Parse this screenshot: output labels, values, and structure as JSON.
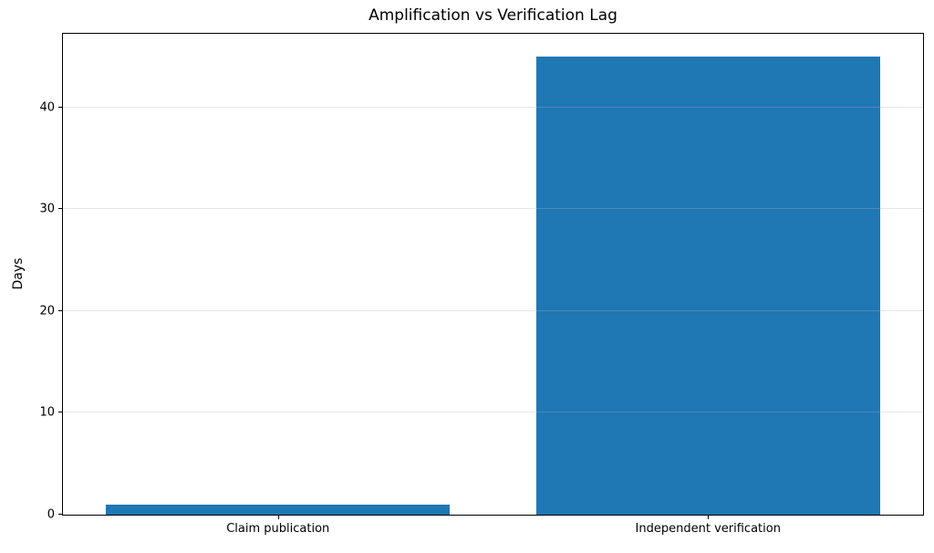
{
  "chart_data": {
    "type": "bar",
    "title": "Amplification vs Verification Lag",
    "categories": [
      "Claim publication",
      "Independent verification"
    ],
    "values": [
      1,
      45
    ],
    "xlabel": "",
    "ylabel": "Days",
    "ylim": [
      0,
      47.25
    ],
    "yticks": [
      0,
      10,
      20,
      30,
      40
    ],
    "bar_color": "#1f77b4",
    "bar_width_fraction": 0.8,
    "grid": "horizontal-faint-over-bars",
    "legend": "none"
  }
}
